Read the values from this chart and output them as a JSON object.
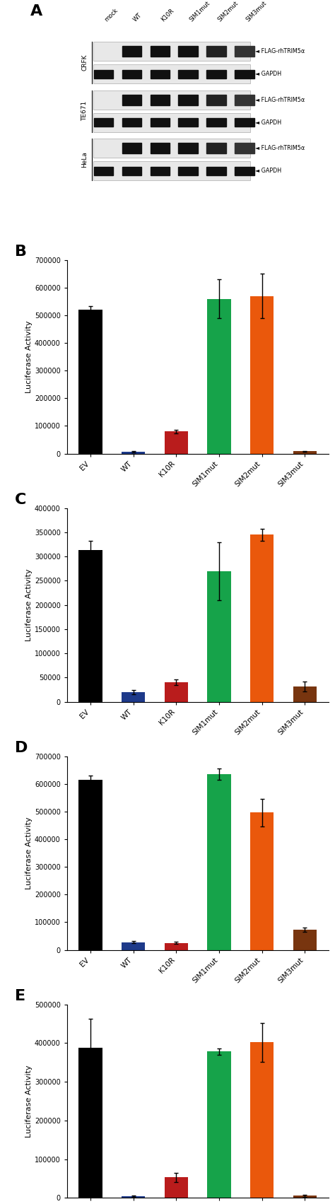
{
  "panel_B": {
    "label": "B",
    "categories": [
      "EV",
      "WT",
      "K10R",
      "SIM1mut",
      "SIM2mut",
      "SIM3mut"
    ],
    "values": [
      520000,
      7000,
      80000,
      560000,
      570000,
      8000
    ],
    "errors": [
      12000,
      2000,
      7000,
      70000,
      80000,
      2000
    ],
    "colors": [
      "#000000",
      "#1e3a8a",
      "#b91c1c",
      "#16a34a",
      "#ea580c",
      "#78350f"
    ],
    "ylim": [
      0,
      700000
    ],
    "yticks": [
      0,
      100000,
      200000,
      300000,
      400000,
      500000,
      600000,
      700000
    ],
    "ylabel": "Luciferase Activity"
  },
  "panel_C": {
    "label": "C",
    "categories": [
      "EV",
      "WT",
      "K10R",
      "SIM1mut",
      "SIM2mut",
      "SIM3mut"
    ],
    "values": [
      313000,
      20000,
      40000,
      270000,
      345000,
      32000
    ],
    "errors": [
      20000,
      4000,
      6000,
      60000,
      12000,
      10000
    ],
    "colors": [
      "#000000",
      "#1e3a8a",
      "#b91c1c",
      "#16a34a",
      "#ea580c",
      "#78350f"
    ],
    "ylim": [
      0,
      400000
    ],
    "yticks": [
      0,
      50000,
      100000,
      150000,
      200000,
      250000,
      300000,
      350000,
      400000
    ],
    "ylabel": "Luciferase Activity"
  },
  "panel_D": {
    "label": "D",
    "categories": [
      "EV",
      "WT",
      "K10R",
      "SIM1mut",
      "SIM2mut",
      "SIM3mut"
    ],
    "values": [
      615000,
      28000,
      25000,
      635000,
      497000,
      72000
    ],
    "errors": [
      15000,
      4000,
      4000,
      20000,
      50000,
      8000
    ],
    "colors": [
      "#000000",
      "#1e3a8a",
      "#b91c1c",
      "#16a34a",
      "#ea580c",
      "#78350f"
    ],
    "ylim": [
      0,
      700000
    ],
    "yticks": [
      0,
      100000,
      200000,
      300000,
      400000,
      500000,
      600000,
      700000
    ],
    "ylabel": "Luciferase Activity"
  },
  "panel_E": {
    "label": "E",
    "categories": [
      "EV",
      "WT",
      "K10R",
      "SIM1mut",
      "SIM2mut",
      "SIM3mut"
    ],
    "values": [
      388000,
      5000,
      53000,
      378000,
      402000,
      6000
    ],
    "errors": [
      75000,
      2000,
      12000,
      8000,
      50000,
      3000
    ],
    "colors": [
      "#000000",
      "#1e3a8a",
      "#b91c1c",
      "#16a34a",
      "#ea580c",
      "#78350f"
    ],
    "ylim": [
      0,
      500000
    ],
    "yticks": [
      0,
      100000,
      200000,
      300000,
      400000,
      500000
    ],
    "ylabel": "Luciferase Activity"
  },
  "col_labels": [
    "mock",
    "WT",
    "K10R",
    "SIM1mut",
    "SIM2mut",
    "SIM3mut"
  ],
  "cell_lines": [
    "CRFK",
    "TE671",
    "HeLa"
  ],
  "bar_width": 0.55,
  "flag_label": "FLAG-rhTRIM5α",
  "gapdh_label": "GAPDH"
}
